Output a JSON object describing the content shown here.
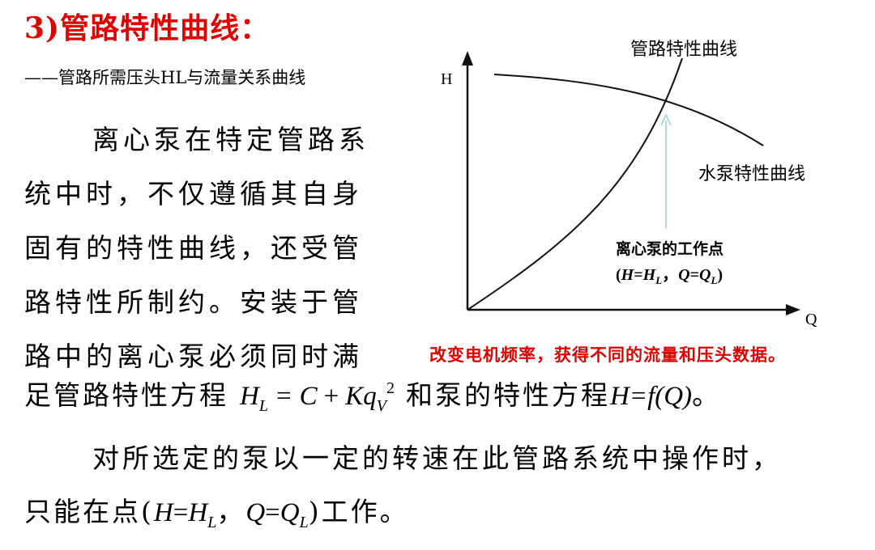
{
  "title": "3)管路特性曲线：",
  "subtitle": "——管路所需压头HL与流量关系曲线",
  "paragraph1_lines": [
    "离心泵在特定管路系",
    "统中时，不仅遵循其自身",
    "固有的特性曲线，还受管",
    "路特性所制约。安装于管",
    "路中的离心泵必须同时满"
  ],
  "equation_line": {
    "prefix": "足管路特性方程",
    "formula": {
      "H": "H",
      "L": "L",
      "eq": "=",
      "C": "C",
      "plus": "+",
      "K": "K",
      "q": "q",
      "V": "V",
      "exp": "2"
    },
    "middle": "和泵的特性方程",
    "pump_eq": "H=f(Q)",
    "suffix": "。"
  },
  "paragraph2_line1": "对所选定的泵以一定的转速在此管路系统中操作时，",
  "paragraph2_line2": {
    "prefix": "只能在点(",
    "H1": "H",
    "eq1": "=",
    "H2": "H",
    "L1": "L",
    "comma": "，",
    "Q1": "Q",
    "eq2": "=",
    "Q2": "Q",
    "L2": "L",
    "suffix": ")工作。"
  },
  "red_note": "改变电机频率，获得不同的流量和压头数据。",
  "diagram": {
    "y_axis_label": "H",
    "x_axis_label": "Q",
    "pipe_curve_label": "管路特性曲线",
    "pump_curve_label": "水泵特性曲线",
    "point_label_line1": "离心泵的工作点",
    "point_label_line2": {
      "open": "(",
      "H1": "H",
      "eq1": "=",
      "H2": "H",
      "L1": "L",
      "comma": "，",
      "Q1": "Q",
      "eq2": "=",
      "Q2": "Q",
      "L2": "L",
      "close": ")"
    },
    "colors": {
      "curve": "#111111",
      "arrow": "#9fd3da",
      "note": "#e00000"
    }
  }
}
